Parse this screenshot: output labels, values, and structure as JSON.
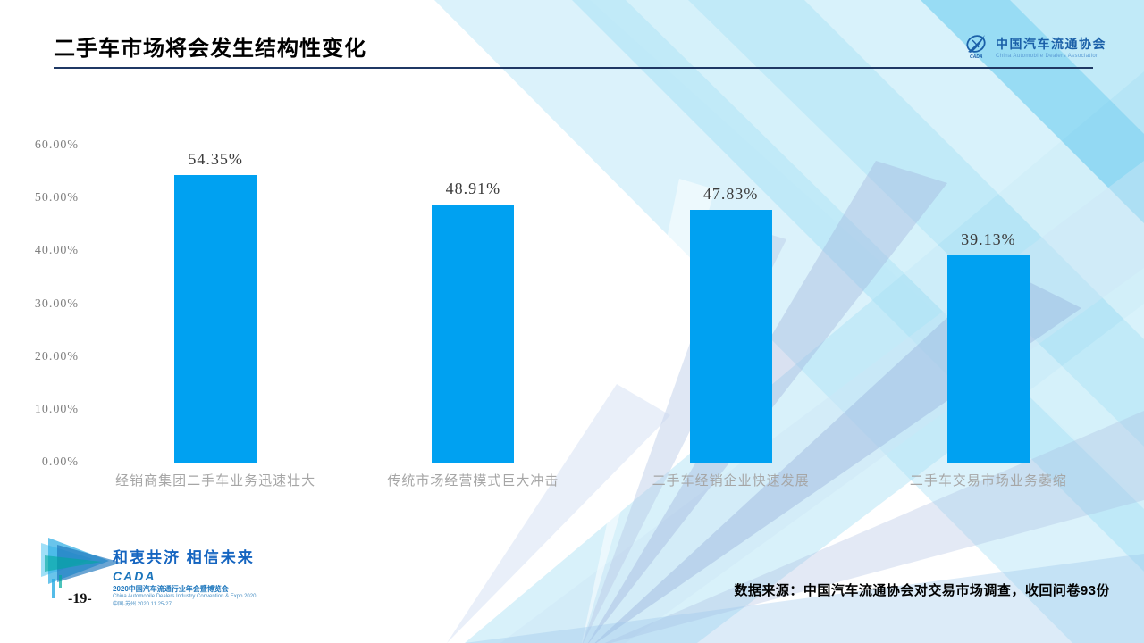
{
  "slide": {
    "title": "二手车市场将会发生结构性变化",
    "page_number": "-19-",
    "source_note": "数据来源：中国汽车流通协会对交易市场调查，收回问卷93份"
  },
  "header_logo": {
    "name_cn": "中国汽车流通协会",
    "name_en": "China Automobile Dealers Association"
  },
  "footer": {
    "slogan": "和衷共济 相信未来",
    "cada": "CADA",
    "event_cn": "2020中国汽车流通行业年会暨博览会",
    "event_en": "China Automobile Dealers Industry Convention & Expo 2020",
    "event_info": "中国·苏州 2020.11.25-27"
  },
  "chart_data": {
    "type": "bar",
    "title": "",
    "categories": [
      "经销商集团二手车业务迅速壮大",
      "传统市场经营模式巨大冲击",
      "二手车经销企业快速发展",
      "二手车交易市场业务萎缩"
    ],
    "values": [
      54.35,
      48.91,
      47.83,
      39.13
    ],
    "value_labels": [
      "54.35%",
      "48.91%",
      "47.83%",
      "39.13%"
    ],
    "yticks": [
      "60.00%",
      "50.00%",
      "40.00%",
      "30.00%",
      "20.00%",
      "10.00%",
      "0.00%"
    ],
    "ylim": [
      0,
      60
    ],
    "xlabel": "",
    "ylabel": "",
    "grid": false,
    "legend": "none",
    "bar_color": "#00A1F1"
  },
  "colors": {
    "title_rule": "#1F3864",
    "bar": "#00A1F1",
    "axis_line": "#D9D9D9",
    "ytick_text": "#7F7F7F",
    "category_text": "#A6A6A6",
    "accent_blue": "#1B75BC"
  }
}
